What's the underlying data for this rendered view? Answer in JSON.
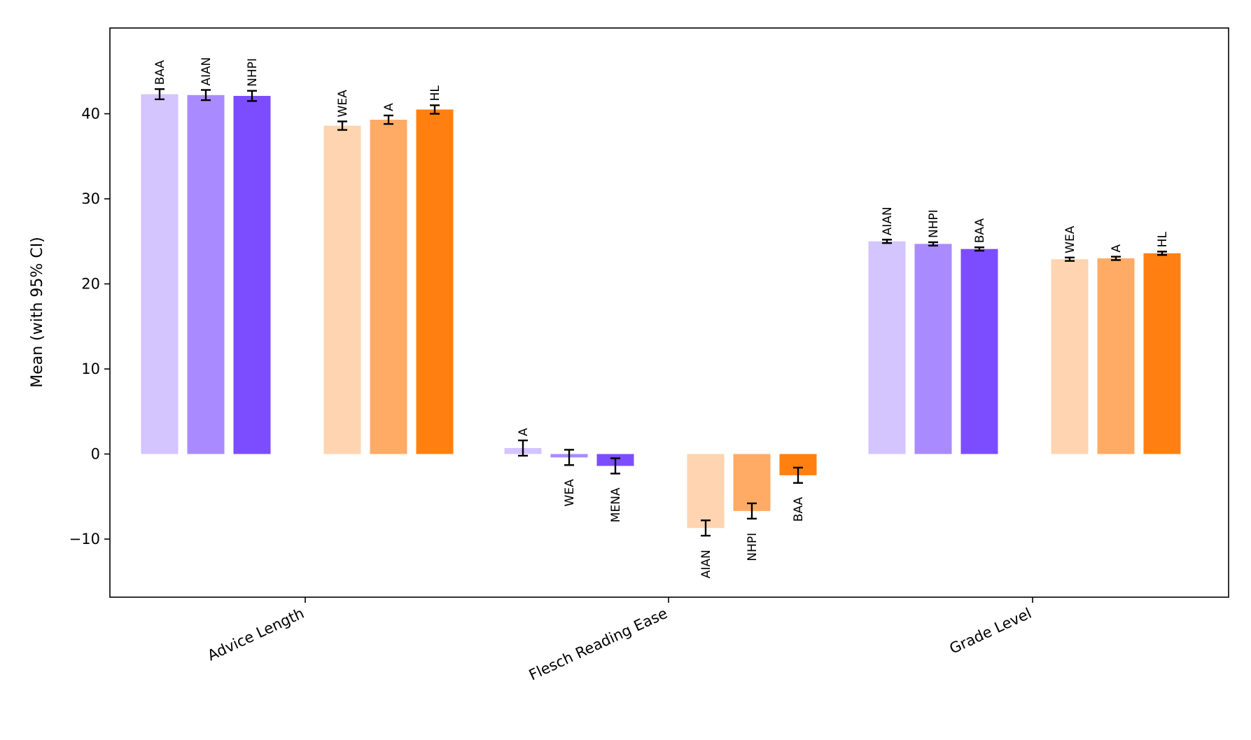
{
  "chart_data": {
    "type": "bar",
    "ylabel": "Mean (with 95% CI)",
    "xlabel": "",
    "title": "",
    "ylim": [
      -17,
      50
    ],
    "yticks": [
      -10,
      0,
      10,
      20,
      30,
      40
    ],
    "grid": false,
    "legend": "none",
    "colors": {
      "purple_light": "#d4c4ff",
      "purple_mid": "#a98bff",
      "purple_dark": "#7c4dff",
      "orange_light": "#ffd4b0",
      "orange_mid": "#ffab66",
      "orange_dark": "#ff8010"
    },
    "groups": [
      {
        "name": "Advice Length",
        "bars": [
          {
            "label": "BAA",
            "value": 42.3,
            "ci": 0.6,
            "color": "#d4c4ff"
          },
          {
            "label": "AIAN",
            "value": 42.2,
            "ci": 0.6,
            "color": "#a98bff"
          },
          {
            "label": "NHPI",
            "value": 42.1,
            "ci": 0.6,
            "color": "#7c4dff"
          },
          {
            "label": "WEA",
            "value": 38.6,
            "ci": 0.5,
            "color": "#ffd4b0"
          },
          {
            "label": "A",
            "value": 39.3,
            "ci": 0.5,
            "color": "#ffab66"
          },
          {
            "label": "HL",
            "value": 40.5,
            "ci": 0.5,
            "color": "#ff8010"
          }
        ]
      },
      {
        "name": "Flesch Reading Ease",
        "bars": [
          {
            "label": "A",
            "value": 0.7,
            "ci": 0.9,
            "color": "#d4c4ff"
          },
          {
            "label": "WEA",
            "value": -0.4,
            "ci": 0.9,
            "color": "#a98bff"
          },
          {
            "label": "MENA",
            "value": -1.4,
            "ci": 0.9,
            "color": "#7c4dff"
          },
          {
            "label": "AIAN",
            "value": -8.7,
            "ci": 0.9,
            "color": "#ffd4b0"
          },
          {
            "label": "NHPI",
            "value": -6.7,
            "ci": 0.9,
            "color": "#ffab66"
          },
          {
            "label": "BAA",
            "value": -2.5,
            "ci": 0.9,
            "color": "#ff8010"
          }
        ]
      },
      {
        "name": "Grade Level",
        "bars": [
          {
            "label": "AIAN",
            "value": 25.0,
            "ci": 0.2,
            "color": "#d4c4ff"
          },
          {
            "label": "NHPI",
            "value": 24.7,
            "ci": 0.2,
            "color": "#a98bff"
          },
          {
            "label": "BAA",
            "value": 24.1,
            "ci": 0.2,
            "color": "#7c4dff"
          },
          {
            "label": "WEA",
            "value": 22.9,
            "ci": 0.2,
            "color": "#ffd4b0"
          },
          {
            "label": "A",
            "value": 23.0,
            "ci": 0.2,
            "color": "#ffab66"
          },
          {
            "label": "HL",
            "value": 23.6,
            "ci": 0.2,
            "color": "#ff8010"
          }
        ]
      }
    ]
  }
}
